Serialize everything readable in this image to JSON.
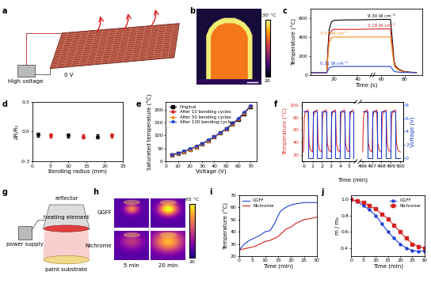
{
  "illustrations": [
    {
      "panel": "a",
      "texts": [
        "High voltage",
        "0 V"
      ]
    },
    {
      "panel": "b",
      "colorbar": {
        "range": [
          20,
          230
        ],
        "ticks": [
          {
            "value": 230,
            "label": "230 °C"
          },
          20
        ]
      }
    },
    {
      "panel": "g",
      "texts": [
        "reflector",
        "heating element",
        "power supply",
        "paint substrate"
      ]
    },
    {
      "panel": "h",
      "rows": [
        "GGFF",
        "Nichrome"
      ],
      "columns": [
        "5 min",
        "20 min"
      ],
      "colorbar": {
        "range": [
          20,
          65
        ],
        "ticks": [
          {
            "value": 65,
            "label": "65 °C"
          },
          20
        ]
      }
    }
  ],
  "chart_data": [
    {
      "panel": "c",
      "type": "line",
      "xlabel": "Time (s)",
      "ylabel": "Temperature (°C)",
      "xlim": [
        0,
        95
      ],
      "xticks": [
        20,
        40,
        60,
        80
      ],
      "ylim": [
        0,
        700
      ],
      "yticks": [
        0,
        200,
        400,
        600
      ],
      "x": [
        0,
        5,
        10,
        14,
        15,
        16,
        18,
        20,
        30,
        40,
        60,
        68,
        70,
        71,
        72,
        75,
        80,
        90
      ],
      "series": [
        {
          "name": "9.30 W cm⁻²",
          "color": "#000000",
          "values": [
            25,
            25,
            25,
            25,
            300,
            480,
            560,
            575,
            580,
            580,
            585,
            585,
            300,
            150,
            100,
            60,
            35,
            25
          ]
        },
        {
          "name": "5.18 W cm⁻²",
          "color": "#d62020",
          "values": [
            25,
            25,
            25,
            25,
            250,
            420,
            470,
            480,
            480,
            480,
            485,
            485,
            250,
            130,
            90,
            55,
            32,
            25
          ]
        },
        {
          "name": "3.57 W cm⁻²",
          "color": "#f08c1a",
          "values": [
            25,
            25,
            25,
            25,
            200,
            340,
            390,
            400,
            400,
            400,
            400,
            400,
            200,
            110,
            80,
            50,
            30,
            25
          ]
        },
        {
          "name": "0.31 W cm⁻²",
          "color": "#2040d0",
          "values": [
            25,
            25,
            25,
            25,
            50,
            75,
            85,
            90,
            90,
            90,
            90,
            90,
            55,
            40,
            35,
            30,
            27,
            25
          ]
        }
      ]
    },
    {
      "panel": "d",
      "type": "scatter",
      "xlabel": "Bending radius (mm)",
      "ylabel": "ΔR/R₀",
      "xlim": [
        0,
        25
      ],
      "xticks": [
        0,
        5,
        10,
        15,
        20,
        25
      ],
      "ylim": [
        -0.3,
        0.3
      ],
      "yticks": [
        -0.3,
        0.0,
        0.3
      ],
      "x": [
        1.5,
        5,
        10,
        14,
        18,
        22
      ],
      "series": [
        {
          "marker": "circle",
          "colors": [
            "#000000",
            "#d62020",
            "#000000",
            "#d62020",
            "#000000",
            "#d62020"
          ],
          "values": [
            -0.03,
            -0.04,
            -0.04,
            -0.05,
            -0.05,
            -0.04
          ],
          "error": [
            0.02,
            0.02,
            0.02,
            0.02,
            0.02,
            0.02
          ]
        }
      ]
    },
    {
      "panel": "e",
      "type": "line",
      "xlabel": "Voltage (V)",
      "ylabel": "Saturated temperature (°C)",
      "xlim": [
        0,
        75
      ],
      "xticks": [
        0,
        10,
        20,
        30,
        40,
        50,
        60,
        70
      ],
      "ylim": [
        0,
        230
      ],
      "yticks": [
        0,
        50,
        100,
        150,
        200
      ],
      "legend": "upper left",
      "x": [
        5,
        10,
        15,
        20,
        25,
        30,
        35,
        40,
        45,
        50,
        55,
        60,
        65,
        70
      ],
      "series": [
        {
          "name": "Original",
          "color": "#000000",
          "marker": "square",
          "values": [
            25,
            30,
            37,
            46,
            56,
            67,
            80,
            94,
            109,
            125,
            143,
            162,
            185,
            212
          ]
        },
        {
          "name": "After 10 bending cycles",
          "color": "#d62020",
          "marker": "circle",
          "values": [
            25,
            31,
            38,
            47,
            57,
            68,
            81,
            95,
            110,
            126,
            144,
            164,
            187,
            213
          ]
        },
        {
          "name": "After 50 bending cycles",
          "color": "#f08c1a",
          "marker": "triangle",
          "values": [
            26,
            31,
            38,
            46,
            56,
            68,
            80,
            95,
            110,
            127,
            145,
            165,
            188,
            214
          ]
        },
        {
          "name": "After 100 bending cycles",
          "color": "#2040d0",
          "marker": "triangle_down",
          "values": [
            26,
            32,
            39,
            48,
            58,
            69,
            82,
            96,
            111,
            127,
            146,
            166,
            189,
            215
          ]
        }
      ]
    },
    {
      "panel": "f",
      "type": "line",
      "xlabel": "Time (min)",
      "ylabel": "Temperature (°C)",
      "y2label": "Voltage (V)",
      "x_segments": [
        {
          "xlim": [
            -0.2,
            5.7
          ],
          "xticks": [
            0,
            1,
            2,
            3,
            4,
            5
          ]
        },
        {
          "xlim": [
            495.7,
            500.3
          ],
          "xticks": [
            496,
            497,
            498,
            499,
            500
          ]
        }
      ],
      "ylim": [
        10,
        105
      ],
      "yticks": [
        20,
        40,
        60,
        80,
        100
      ],
      "y2lim": [
        -0.5,
        8.5
      ],
      "y2ticks": [
        0,
        2,
        4,
        6,
        8
      ],
      "series": [
        {
          "color": "#e03030",
          "x": [
            0,
            0.08,
            0.2,
            0.5,
            0.6,
            0.75,
            1,
            1.08,
            1.2,
            1.5,
            1.6,
            1.75,
            2,
            2.08,
            2.2,
            2.5,
            2.6,
            2.75,
            3,
            3.08,
            3.2,
            3.5,
            3.6,
            3.75,
            4,
            4.08,
            4.2,
            4.5,
            4.6,
            4.75,
            5,
            5.08,
            5.2,
            5.5,
            null,
            496,
            496.08,
            496.2,
            496.5,
            496.6,
            496.75,
            497,
            497.08,
            497.2,
            497.5,
            497.6,
            497.75,
            498,
            498.08,
            498.2,
            498.5,
            498.6,
            498.75,
            499,
            499.08,
            499.2,
            499.5,
            499.6,
            499.75,
            500
          ],
          "values": [
            25,
            80,
            90,
            92,
            40,
            28,
            25,
            80,
            90,
            92,
            40,
            28,
            25,
            80,
            90,
            92,
            40,
            28,
            25,
            80,
            90,
            92,
            40,
            28,
            25,
            80,
            90,
            92,
            40,
            28,
            25,
            80,
            90,
            92,
            null,
            25,
            80,
            90,
            92,
            40,
            28,
            25,
            80,
            90,
            92,
            40,
            28,
            25,
            80,
            90,
            92,
            40,
            28,
            25,
            80,
            90,
            92,
            40,
            28,
            25
          ]
        },
        {
          "color": "#2040d0",
          "axis": "y2",
          "line_style": "step",
          "x": [
            0,
            0.5,
            1,
            1.5,
            2,
            2.5,
            3,
            3.5,
            4,
            4.5,
            5,
            5.5,
            null,
            496,
            496.5,
            497,
            497.5,
            498,
            498.5,
            499,
            499.5,
            500
          ],
          "values": [
            7,
            0,
            7,
            0,
            7,
            0,
            7,
            0,
            7,
            0,
            7,
            0,
            null,
            7,
            0,
            7,
            0,
            7,
            0,
            7,
            0,
            0
          ]
        }
      ]
    },
    {
      "panel": "i",
      "type": "line",
      "xlabel": "Time (min)",
      "ylabel": "Temperature (°C)",
      "xlim": [
        0,
        30
      ],
      "xticks": [
        0,
        5,
        10,
        15,
        20,
        25,
        30
      ],
      "ylim": [
        20,
        70
      ],
      "yticks": [
        20,
        30,
        40,
        50,
        60,
        70
      ],
      "legend": "upper left",
      "x": [
        0,
        2,
        4,
        6,
        8,
        10,
        12,
        14,
        15,
        16,
        18,
        20,
        22,
        25,
        28,
        30
      ],
      "series": [
        {
          "name": "GGFF",
          "color": "#2040d0",
          "values": [
            25,
            30,
            33,
            35,
            37,
            40,
            41,
            48,
            53,
            57,
            60,
            62,
            63,
            64,
            64,
            64
          ]
        },
        {
          "name": "Nichrome",
          "color": "#d62020",
          "values": [
            25,
            26,
            27,
            28,
            30,
            32,
            33,
            35,
            36,
            38,
            42,
            44,
            47,
            50,
            51,
            52
          ]
        }
      ]
    },
    {
      "panel": "j",
      "type": "line",
      "xlabel": "Time (min)",
      "ylabel": "m / m₀",
      "xlim": [
        0,
        30
      ],
      "xticks": [
        0,
        5,
        10,
        15,
        20,
        25,
        30
      ],
      "ylim": [
        0.3,
        1.05
      ],
      "yticks": [
        0.4,
        0.6,
        0.8,
        1.0
      ],
      "legend": "upper right",
      "x": [
        0,
        2.5,
        5,
        7.5,
        10,
        12.5,
        15,
        17.5,
        20,
        22.5,
        25,
        27.5,
        30
      ],
      "series": [
        {
          "name": "GGFF",
          "color": "#2040d0",
          "marker": "circle",
          "values": [
            1.0,
            0.97,
            0.92,
            0.87,
            0.8,
            0.7,
            0.6,
            0.52,
            0.45,
            0.4,
            0.37,
            0.36,
            0.36
          ]
        },
        {
          "name": "Nichrome",
          "color": "#d62020",
          "marker": "square",
          "values": [
            1.0,
            0.98,
            0.96,
            0.92,
            0.88,
            0.82,
            0.76,
            0.68,
            0.6,
            0.52,
            0.45,
            0.42,
            0.4
          ]
        }
      ]
    }
  ]
}
